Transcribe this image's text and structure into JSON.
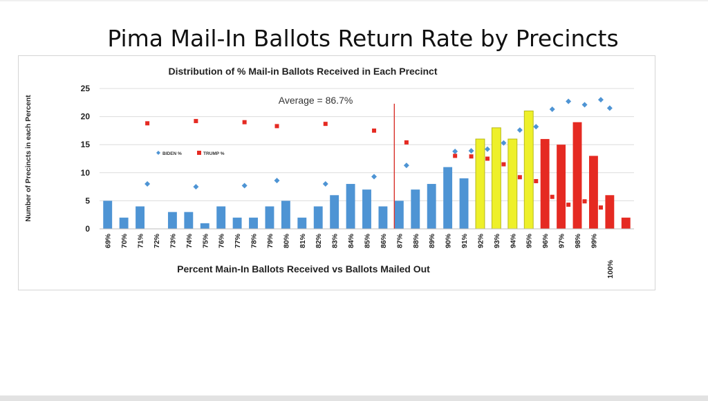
{
  "slide": {
    "title": "Pima Mail-In Ballots Return Rate by Precincts"
  },
  "chart_data": {
    "type": "bar",
    "title": "Distribution of % Mail-in Ballots Received in Each Precinct",
    "xlabel": "Percent Main-In Ballots Received vs Ballots Mailed Out",
    "ylabel": "Number of Precincts in each Percent",
    "ylim": [
      0,
      25
    ],
    "yticks": [
      0,
      5,
      10,
      15,
      20,
      25
    ],
    "grid": true,
    "legend_position": "middle-left",
    "categories": [
      "69%",
      "70%",
      "71%",
      "72%",
      "73%",
      "74%",
      "75%",
      "76%",
      "77%",
      "78%",
      "79%",
      "80%",
      "81%",
      "82%",
      "83%",
      "84%",
      "85%",
      "86%",
      "87%",
      "88%",
      "89%",
      "90%",
      "91%",
      "92%",
      "93%",
      "94%",
      "95%",
      "96%",
      "97%",
      "98%",
      "99%",
      "100%",
      ""
    ],
    "values": [
      5,
      2,
      4,
      0,
      3,
      3,
      1,
      4,
      2,
      2,
      4,
      5,
      2,
      4,
      6,
      8,
      7,
      4,
      5,
      7,
      8,
      11,
      9,
      16,
      18,
      16,
      21,
      16,
      15,
      19,
      13,
      6,
      2
    ],
    "bar_colors": [
      "#4e94d4",
      "#4e94d4",
      "#4e94d4",
      "#4e94d4",
      "#4e94d4",
      "#4e94d4",
      "#4e94d4",
      "#4e94d4",
      "#4e94d4",
      "#4e94d4",
      "#4e94d4",
      "#4e94d4",
      "#4e94d4",
      "#4e94d4",
      "#4e94d4",
      "#4e94d4",
      "#4e94d4",
      "#4e94d4",
      "#4e94d4",
      "#4e94d4",
      "#4e94d4",
      "#4e94d4",
      "#4e94d4",
      "#eef02a",
      "#eef02a",
      "#eef02a",
      "#eef02a",
      "#e52a22",
      "#e52a22",
      "#e52a22",
      "#e52a22",
      "#e52a22",
      "#e52a22"
    ],
    "series": [
      {
        "name": "BIDEN %",
        "color": "#4e94d4",
        "marker": "diamond",
        "points": [
          {
            "category": "71%",
            "value": 8
          },
          {
            "category": "74%",
            "value": 7.5
          },
          {
            "category": "77%",
            "value": 7.7
          },
          {
            "category": "79%",
            "value": 8.6
          },
          {
            "category": "82%",
            "value": 8
          },
          {
            "category": "85%",
            "value": 9.3
          },
          {
            "category": "87%",
            "value": 11.3
          },
          {
            "category": "90%",
            "value": 13.8
          },
          {
            "category": "91%",
            "value": 13.9
          },
          {
            "category": "92%",
            "value": 14.2
          },
          {
            "category": "93%",
            "value": 15.3
          },
          {
            "category": "94%",
            "value": 17.6
          },
          {
            "category": "95%",
            "value": 18.2
          },
          {
            "category": "96%",
            "value": 21.3
          },
          {
            "category": "97%",
            "value": 22.7
          },
          {
            "category": "98%",
            "value": 22.1
          },
          {
            "category": "99%",
            "value": 23
          },
          {
            "category": "100%",
            "value": 21.5
          }
        ]
      },
      {
        "name": "TRUMP %",
        "color": "#e52a22",
        "marker": "square",
        "points": [
          {
            "category": "71%",
            "value": 18.8
          },
          {
            "category": "74%",
            "value": 19.2
          },
          {
            "category": "77%",
            "value": 19
          },
          {
            "category": "79%",
            "value": 18.3
          },
          {
            "category": "82%",
            "value": 18.7
          },
          {
            "category": "85%",
            "value": 17.5
          },
          {
            "category": "87%",
            "value": 15.4
          },
          {
            "category": "90%",
            "value": 13
          },
          {
            "category": "91%",
            "value": 12.9
          },
          {
            "category": "92%",
            "value": 12.5
          },
          {
            "category": "93%",
            "value": 11.5
          },
          {
            "category": "94%",
            "value": 9.2
          },
          {
            "category": "95%",
            "value": 8.5
          },
          {
            "category": "96%",
            "value": 5.7
          },
          {
            "category": "97%",
            "value": 4.3
          },
          {
            "category": "98%",
            "value": 4.9
          },
          {
            "category": "99%",
            "value": 3.8
          },
          {
            "category": "100%",
            "value": 5.3
          }
        ]
      }
    ],
    "annotations": [
      {
        "text": "Average = 86.7%",
        "type": "vertical-line",
        "x_value": 86.7,
        "color": "#d9302a"
      }
    ]
  }
}
